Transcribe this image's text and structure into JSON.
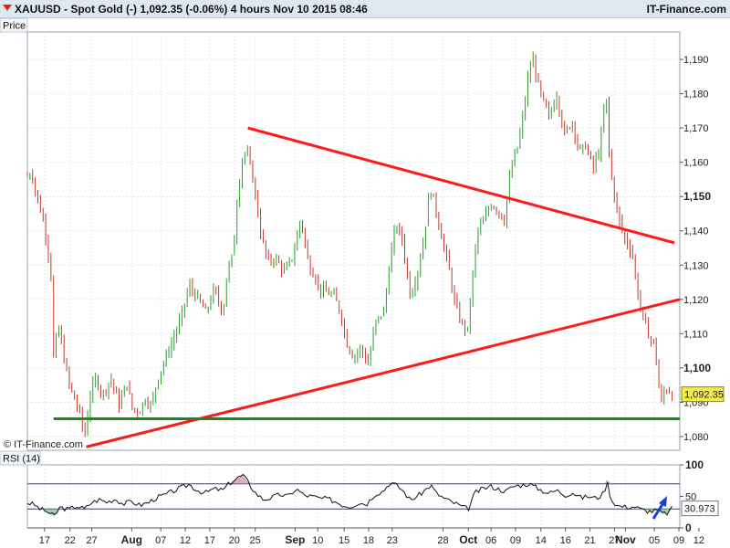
{
  "header": {
    "title": "XAUUSD - Spot Gold (-)    1,092.35 (-0.06%)    4 hours   Nov 10 2015 08:46",
    "brand": "IT-Finance.com"
  },
  "colors": {
    "bull": "#2f9a2f",
    "bear": "#c0392b",
    "red_line": "#ff1a1a",
    "green_line": "#1b8a1b",
    "rsi_line": "#111111",
    "rsi_band": "#3333aa"
  },
  "chart_data": [
    {
      "type": "candlestick",
      "panel_label": "Price",
      "ylim": [
        1076,
        1198
      ],
      "y_ticks": [
        {
          "value": 1080,
          "label": "1,080",
          "bold": false
        },
        {
          "value": 1090,
          "label": "1,090",
          "bold": false
        },
        {
          "value": 1100,
          "label": "1,100",
          "bold": true
        },
        {
          "value": 1110,
          "label": "1,110",
          "bold": false
        },
        {
          "value": 1120,
          "label": "1,120",
          "bold": false
        },
        {
          "value": 1130,
          "label": "1,130",
          "bold": false
        },
        {
          "value": 1140,
          "label": "1,140",
          "bold": false
        },
        {
          "value": 1150,
          "label": "1,150",
          "bold": true
        },
        {
          "value": 1160,
          "label": "1,160",
          "bold": false
        },
        {
          "value": 1170,
          "label": "1,170",
          "bold": false
        },
        {
          "value": 1180,
          "label": "1,180",
          "bold": false
        },
        {
          "value": 1190,
          "label": "1,190",
          "bold": false
        }
      ],
      "last_price_label": "1,092.35",
      "last_price": 1092.35,
      "watermark": "© IT-Finance.com",
      "x_labels": [
        {
          "label": "17",
          "pos": 0.0264,
          "bold": false
        },
        {
          "label": "22",
          "pos": 0.0654,
          "bold": false
        },
        {
          "label": "27",
          "pos": 0.0987,
          "bold": false
        },
        {
          "label": "Aug",
          "pos": 0.1599,
          "bold": true
        },
        {
          "label": "07",
          "pos": 0.2045,
          "bold": false
        },
        {
          "label": "12",
          "pos": 0.242,
          "bold": false
        },
        {
          "label": "17",
          "pos": 0.2796,
          "bold": false
        },
        {
          "label": "20",
          "pos": 0.3172,
          "bold": false
        },
        {
          "label": "25",
          "pos": 0.3492,
          "bold": false
        },
        {
          "label": "Sep",
          "pos": 0.4103,
          "bold": true
        },
        {
          "label": "10",
          "pos": 0.4451,
          "bold": false
        },
        {
          "label": "15",
          "pos": 0.4855,
          "bold": false
        },
        {
          "label": "18",
          "pos": 0.523,
          "bold": false
        },
        {
          "label": "23",
          "pos": 0.5592,
          "bold": false
        },
        {
          "label": "28",
          "pos": 0.637,
          "bold": false
        },
        {
          "label": "Oct",
          "pos": 0.6759,
          "bold": true
        },
        {
          "label": "06",
          "pos": 0.7107,
          "bold": false
        },
        {
          "label": "09",
          "pos": 0.7482,
          "bold": false
        },
        {
          "label": "14",
          "pos": 0.7871,
          "bold": false
        },
        {
          "label": "16",
          "pos": 0.8248,
          "bold": false
        },
        {
          "label": "21",
          "pos": 0.8623,
          "bold": false
        },
        {
          "label": "27",
          "pos": 0.8999,
          "bold": false
        },
        {
          "label": "Nov",
          "pos": 0.9166,
          "bold": true
        },
        {
          "label": "05",
          "pos": 0.961,
          "bold": false
        },
        {
          "label": "09",
          "pos": 0.9986,
          "bold": false
        },
        {
          "label": "12",
          "pos": 1.0292,
          "bold": false
        }
      ],
      "trendlines": [
        {
          "color": "red",
          "points": [
            [
              0.3381,
              1170
            ],
            [
              0.9916,
              1136.5
            ]
          ]
        },
        {
          "color": "red",
          "points": [
            [
              0.0904,
              1077
            ],
            [
              1.0,
              1120
            ]
          ]
        },
        {
          "color": "green",
          "points": [
            [
              0.0403,
              1085.2
            ],
            [
              1.0,
              1085.2
            ]
          ]
        }
      ],
      "close_path": [
        [
          0.0,
          1156
        ],
        [
          0.007,
          1157
        ],
        [
          0.014,
          1150
        ],
        [
          0.022,
          1145
        ],
        [
          0.029,
          1138
        ],
        [
          0.036,
          1128
        ],
        [
          0.041,
          1098
        ],
        [
          0.046,
          1114
        ],
        [
          0.055,
          1104
        ],
        [
          0.063,
          1096
        ],
        [
          0.07,
          1092
        ],
        [
          0.08,
          1087
        ],
        [
          0.088,
          1080
        ],
        [
          0.096,
          1092
        ],
        [
          0.105,
          1097
        ],
        [
          0.115,
          1092
        ],
        [
          0.128,
          1097
        ],
        [
          0.141,
          1089
        ],
        [
          0.152,
          1096
        ],
        [
          0.161,
          1088
        ],
        [
          0.171,
          1087
        ],
        [
          0.18,
          1091
        ],
        [
          0.19,
          1089
        ],
        [
          0.2,
          1097
        ],
        [
          0.212,
          1103
        ],
        [
          0.223,
          1108
        ],
        [
          0.236,
          1115
        ],
        [
          0.248,
          1124
        ],
        [
          0.262,
          1120
        ],
        [
          0.274,
          1116
        ],
        [
          0.286,
          1123
        ],
        [
          0.3,
          1116
        ],
        [
          0.306,
          1128
        ],
        [
          0.315,
          1133
        ],
        [
          0.322,
          1150
        ],
        [
          0.33,
          1162
        ],
        [
          0.336,
          1163
        ],
        [
          0.343,
          1158
        ],
        [
          0.35,
          1150
        ],
        [
          0.357,
          1140
        ],
        [
          0.368,
          1131
        ],
        [
          0.38,
          1132
        ],
        [
          0.394,
          1128
        ],
        [
          0.408,
          1133
        ],
        [
          0.419,
          1144
        ],
        [
          0.431,
          1130
        ],
        [
          0.44,
          1127
        ],
        [
          0.448,
          1123
        ],
        [
          0.459,
          1122
        ],
        [
          0.47,
          1121
        ],
        [
          0.48,
          1116
        ],
        [
          0.49,
          1107
        ],
        [
          0.5,
          1103
        ],
        [
          0.511,
          1106
        ],
        [
          0.522,
          1101
        ],
        [
          0.533,
          1113
        ],
        [
          0.547,
          1117
        ],
        [
          0.556,
          1132
        ],
        [
          0.565,
          1142
        ],
        [
          0.574,
          1138
        ],
        [
          0.587,
          1121
        ],
        [
          0.598,
          1128
        ],
        [
          0.608,
          1138
        ],
        [
          0.617,
          1153
        ],
        [
          0.625,
          1147
        ],
        [
          0.634,
          1139
        ],
        [
          0.645,
          1130
        ],
        [
          0.655,
          1119
        ],
        [
          0.665,
          1113
        ],
        [
          0.675,
          1111
        ],
        [
          0.683,
          1128
        ],
        [
          0.69,
          1140
        ],
        [
          0.7,
          1143
        ],
        [
          0.71,
          1148
        ],
        [
          0.721,
          1146
        ],
        [
          0.731,
          1143
        ],
        [
          0.741,
          1158
        ],
        [
          0.752,
          1165
        ],
        [
          0.761,
          1175
        ],
        [
          0.769,
          1187
        ],
        [
          0.776,
          1190
        ],
        [
          0.782,
          1183
        ],
        [
          0.79,
          1178
        ],
        [
          0.8,
          1173
        ],
        [
          0.811,
          1180
        ],
        [
          0.823,
          1168
        ],
        [
          0.835,
          1172
        ],
        [
          0.846,
          1163
        ],
        [
          0.856,
          1165
        ],
        [
          0.867,
          1158
        ],
        [
          0.877,
          1164
        ],
        [
          0.887,
          1180
        ],
        [
          0.893,
          1158
        ],
        [
          0.9,
          1150
        ],
        [
          0.907,
          1143
        ],
        [
          0.917,
          1137
        ],
        [
          0.927,
          1134
        ],
        [
          0.934,
          1123
        ],
        [
          0.942,
          1116
        ],
        [
          0.951,
          1110
        ],
        [
          0.96,
          1107
        ],
        [
          0.966,
          1100
        ],
        [
          0.97,
          1088
        ],
        [
          0.975,
          1093
        ],
        [
          0.982,
          1094
        ],
        [
          0.988,
          1092
        ]
      ]
    },
    {
      "type": "line",
      "panel_label": "RSI (14)",
      "ylim": [
        0,
        100
      ],
      "y_ticks": [
        {
          "value": 100,
          "label": "100",
          "bold": true
        },
        {
          "value": 50,
          "label": "50",
          "bold": false
        },
        {
          "value": 0,
          "label": "0",
          "bold": true
        }
      ],
      "bands": [
        70,
        30
      ],
      "last_value_label": "30.973",
      "last_value": 30.97,
      "series": [
        [
          0.0,
          40
        ],
        [
          0.01,
          37
        ],
        [
          0.02,
          30
        ],
        [
          0.03,
          26
        ],
        [
          0.041,
          18
        ],
        [
          0.05,
          33
        ],
        [
          0.063,
          29
        ],
        [
          0.075,
          35
        ],
        [
          0.088,
          30
        ],
        [
          0.098,
          40
        ],
        [
          0.11,
          45
        ],
        [
          0.122,
          41
        ],
        [
          0.135,
          46
        ],
        [
          0.147,
          38
        ],
        [
          0.16,
          42
        ],
        [
          0.172,
          36
        ],
        [
          0.185,
          40
        ],
        [
          0.198,
          48
        ],
        [
          0.21,
          52
        ],
        [
          0.223,
          58
        ],
        [
          0.236,
          64
        ],
        [
          0.248,
          69
        ],
        [
          0.26,
          60
        ],
        [
          0.272,
          55
        ],
        [
          0.286,
          62
        ],
        [
          0.3,
          60
        ],
        [
          0.309,
          70
        ],
        [
          0.32,
          78
        ],
        [
          0.33,
          84
        ],
        [
          0.338,
          73
        ],
        [
          0.35,
          55
        ],
        [
          0.362,
          45
        ],
        [
          0.374,
          48
        ],
        [
          0.387,
          53
        ],
        [
          0.4,
          50
        ],
        [
          0.412,
          62
        ],
        [
          0.424,
          52
        ],
        [
          0.436,
          50
        ],
        [
          0.448,
          47
        ],
        [
          0.46,
          46
        ],
        [
          0.472,
          42
        ],
        [
          0.484,
          36
        ],
        [
          0.495,
          34
        ],
        [
          0.508,
          40
        ],
        [
          0.52,
          38
        ],
        [
          0.533,
          54
        ],
        [
          0.545,
          58
        ],
        [
          0.556,
          72
        ],
        [
          0.565,
          68
        ],
        [
          0.575,
          60
        ],
        [
          0.587,
          44
        ],
        [
          0.6,
          52
        ],
        [
          0.612,
          62
        ],
        [
          0.618,
          68
        ],
        [
          0.627,
          55
        ],
        [
          0.637,
          48
        ],
        [
          0.648,
          42
        ],
        [
          0.658,
          38
        ],
        [
          0.667,
          33
        ],
        [
          0.676,
          30
        ],
        [
          0.686,
          56
        ],
        [
          0.698,
          62
        ],
        [
          0.71,
          66
        ],
        [
          0.721,
          62
        ],
        [
          0.733,
          58
        ],
        [
          0.745,
          66
        ],
        [
          0.757,
          68
        ],
        [
          0.769,
          70
        ],
        [
          0.778,
          65
        ],
        [
          0.79,
          59
        ],
        [
          0.8,
          55
        ],
        [
          0.812,
          60
        ],
        [
          0.824,
          52
        ],
        [
          0.836,
          56
        ],
        [
          0.848,
          48
        ],
        [
          0.86,
          50
        ],
        [
          0.872,
          47
        ],
        [
          0.884,
          55
        ],
        [
          0.888,
          76
        ],
        [
          0.895,
          44
        ],
        [
          0.905,
          35
        ],
        [
          0.917,
          33
        ],
        [
          0.929,
          34
        ],
        [
          0.942,
          29
        ],
        [
          0.955,
          26
        ],
        [
          0.966,
          28
        ],
        [
          0.975,
          22
        ],
        [
          0.982,
          24
        ],
        [
          0.988,
          31
        ]
      ]
    }
  ]
}
